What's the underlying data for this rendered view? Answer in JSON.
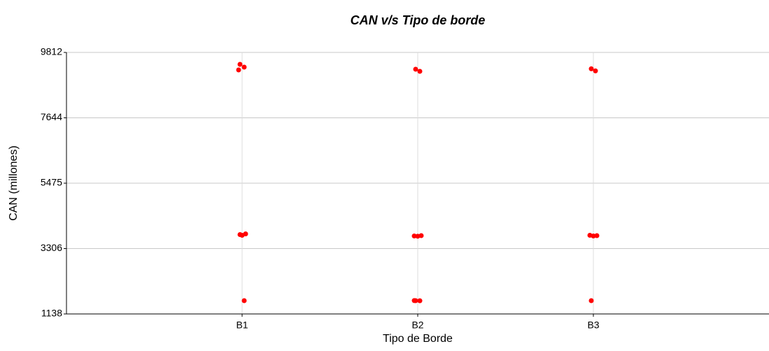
{
  "chart_data": {
    "type": "scatter",
    "title": "CAN v/s Tipo de borde",
    "x_label": "Tipo de Borde",
    "y_label": "CAN (millones)",
    "categories": [
      "B1",
      "B2",
      "B3"
    ],
    "points": [
      {
        "x": "B1",
        "y": 9418
      },
      {
        "x": "B1",
        "y": 9325
      },
      {
        "x": "B1",
        "y": 9232
      },
      {
        "x": "B1",
        "y": 3793
      },
      {
        "x": "B1",
        "y": 3747
      },
      {
        "x": "B1",
        "y": 3770
      },
      {
        "x": "B1",
        "y": 1579
      },
      {
        "x": "B2",
        "y": 9255
      },
      {
        "x": "B2",
        "y": 9186
      },
      {
        "x": "B2",
        "y": 3724
      },
      {
        "x": "B2",
        "y": 3735
      },
      {
        "x": "B2",
        "y": 3715
      },
      {
        "x": "B2",
        "y": 1579
      },
      {
        "x": "B2",
        "y": 1575
      },
      {
        "x": "B2",
        "y": 1582
      },
      {
        "x": "B3",
        "y": 9270
      },
      {
        "x": "B3",
        "y": 9200
      },
      {
        "x": "B3",
        "y": 3747
      },
      {
        "x": "B3",
        "y": 3735
      },
      {
        "x": "B3",
        "y": 3724
      },
      {
        "x": "B3",
        "y": 1579
      }
    ],
    "color": "#ff0000",
    "ylim": [
      1138,
      9812
    ],
    "yticks": [
      1138,
      3306,
      5475,
      7644,
      9812
    ],
    "grid": true
  }
}
